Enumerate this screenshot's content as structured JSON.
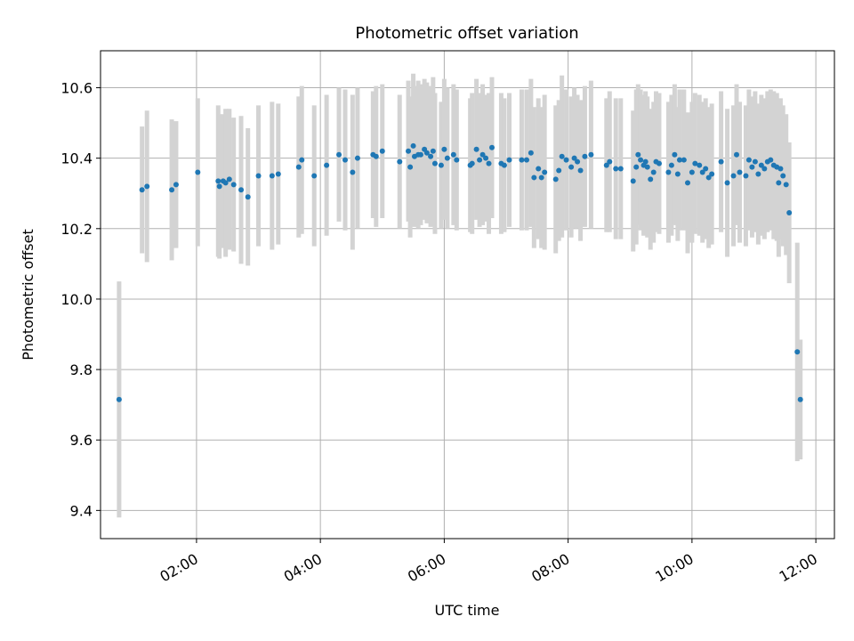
{
  "chart_data": {
    "type": "scatter",
    "title": "Photometric offset variation",
    "xlabel": "UTC time",
    "ylabel": "Photometric offset",
    "xlim": [
      0.45,
      12.3
    ],
    "ylim": [
      9.32,
      10.705
    ],
    "x_ticks": [
      2,
      4,
      6,
      8,
      10,
      12
    ],
    "x_tick_labels": [
      "02:00",
      "04:00",
      "06:00",
      "08:00",
      "10:00",
      "12:00"
    ],
    "y_ticks": [
      9.4,
      9.6,
      9.8,
      10.0,
      10.2,
      10.4,
      10.6
    ],
    "y_tick_labels": [
      "9.4",
      "9.6",
      "9.8",
      "10.0",
      "10.2",
      "10.4",
      "10.6"
    ],
    "grid": true,
    "colors": {
      "points": "#1f77b4",
      "errorbars": "#d3d3d3",
      "grid": "#b0b0b0"
    },
    "series": [
      {
        "x": [
          0.75,
          1.12,
          1.2,
          1.6,
          1.67,
          2.02,
          2.35,
          2.37,
          2.43,
          2.47,
          2.53,
          2.6,
          2.72,
          2.83,
          3.0,
          3.22,
          3.32,
          3.65,
          3.7,
          3.9,
          4.1,
          4.3,
          4.4,
          4.52,
          4.6,
          4.85,
          4.9,
          5.0,
          5.28,
          5.42,
          5.45,
          5.5,
          5.52,
          5.58,
          5.62,
          5.68,
          5.72,
          5.78,
          5.82,
          5.85,
          5.95,
          6.0,
          6.05,
          6.15,
          6.2,
          6.42,
          6.45,
          6.52,
          6.57,
          6.62,
          6.67,
          6.72,
          6.77,
          6.92,
          6.97,
          7.05,
          7.25,
          7.33,
          7.4,
          7.45,
          7.52,
          7.57,
          7.62,
          7.8,
          7.85,
          7.9,
          7.97,
          8.05,
          8.1,
          8.15,
          8.2,
          8.27,
          8.37,
          8.62,
          8.67,
          8.77,
          8.85,
          9.05,
          9.1,
          9.13,
          9.17,
          9.22,
          9.25,
          9.28,
          9.33,
          9.38,
          9.42,
          9.47,
          9.62,
          9.67,
          9.72,
          9.77,
          9.8,
          9.87,
          9.93,
          10.0,
          10.05,
          10.12,
          10.17,
          10.22,
          10.27,
          10.32,
          10.47,
          10.57,
          10.67,
          10.72,
          10.77,
          10.87,
          10.92,
          10.97,
          11.02,
          11.07,
          11.12,
          11.17,
          11.22,
          11.27,
          11.32,
          11.37,
          11.4,
          11.43,
          11.47,
          11.52,
          11.57,
          11.7,
          11.75
        ],
        "y": [
          9.715,
          10.31,
          10.32,
          10.31,
          10.325,
          10.36,
          10.335,
          10.32,
          10.335,
          10.33,
          10.34,
          10.325,
          10.31,
          10.29,
          10.35,
          10.35,
          10.355,
          10.375,
          10.395,
          10.35,
          10.38,
          10.41,
          10.395,
          10.36,
          10.4,
          10.41,
          10.405,
          10.42,
          10.39,
          10.42,
          10.375,
          10.435,
          10.405,
          10.41,
          10.41,
          10.425,
          10.415,
          10.405,
          10.42,
          10.385,
          10.38,
          10.425,
          10.4,
          10.41,
          10.395,
          10.38,
          10.385,
          10.425,
          10.395,
          10.41,
          10.4,
          10.385,
          10.43,
          10.385,
          10.38,
          10.395,
          10.395,
          10.395,
          10.415,
          10.345,
          10.37,
          10.345,
          10.36,
          10.34,
          10.365,
          10.405,
          10.395,
          10.375,
          10.4,
          10.39,
          10.365,
          10.405,
          10.41,
          10.38,
          10.39,
          10.37,
          10.37,
          10.335,
          10.375,
          10.41,
          10.395,
          10.38,
          10.39,
          10.375,
          10.34,
          10.36,
          10.39,
          10.385,
          10.36,
          10.38,
          10.41,
          10.355,
          10.395,
          10.395,
          10.33,
          10.36,
          10.385,
          10.38,
          10.36,
          10.37,
          10.345,
          10.355,
          10.39,
          10.33,
          10.35,
          10.41,
          10.36,
          10.35,
          10.395,
          10.375,
          10.39,
          10.355,
          10.38,
          10.37,
          10.39,
          10.395,
          10.38,
          10.375,
          10.33,
          10.37,
          10.35,
          10.325,
          10.245,
          9.85,
          9.715
        ],
        "err": [
          0.335,
          0.18,
          0.215,
          0.2,
          0.18,
          0.21,
          0.215,
          0.205,
          0.19,
          0.21,
          0.2,
          0.19,
          0.21,
          0.195,
          0.2,
          0.21,
          0.2,
          0.2,
          0.21,
          0.2,
          0.2,
          0.19,
          0.2,
          0.22,
          0.2,
          0.18,
          0.2,
          0.19,
          0.19,
          0.2,
          0.2,
          0.205,
          0.2,
          0.21,
          0.2,
          0.2,
          0.2,
          0.2,
          0.21,
          0.2,
          0.18,
          0.2,
          0.2,
          0.2,
          0.2,
          0.19,
          0.2,
          0.2,
          0.19,
          0.2,
          0.18,
          0.2,
          0.2,
          0.2,
          0.19,
          0.19,
          0.2,
          0.2,
          0.21,
          0.2,
          0.2,
          0.2,
          0.22,
          0.21,
          0.2,
          0.23,
          0.2,
          0.2,
          0.2,
          0.19,
          0.2,
          0.2,
          0.21,
          0.19,
          0.2,
          0.2,
          0.2,
          0.2,
          0.22,
          0.2,
          0.2,
          0.2,
          0.2,
          0.2,
          0.2,
          0.2,
          0.2,
          0.2,
          0.2,
          0.2,
          0.2,
          0.19,
          0.2,
          0.2,
          0.2,
          0.2,
          0.2,
          0.2,
          0.2,
          0.2,
          0.2,
          0.2,
          0.2,
          0.21,
          0.2,
          0.2,
          0.2,
          0.2,
          0.2,
          0.2,
          0.2,
          0.2,
          0.2,
          0.2,
          0.2,
          0.2,
          0.21,
          0.21,
          0.21,
          0.2,
          0.2,
          0.2,
          0.2,
          0.31,
          0.17
        ]
      }
    ]
  }
}
